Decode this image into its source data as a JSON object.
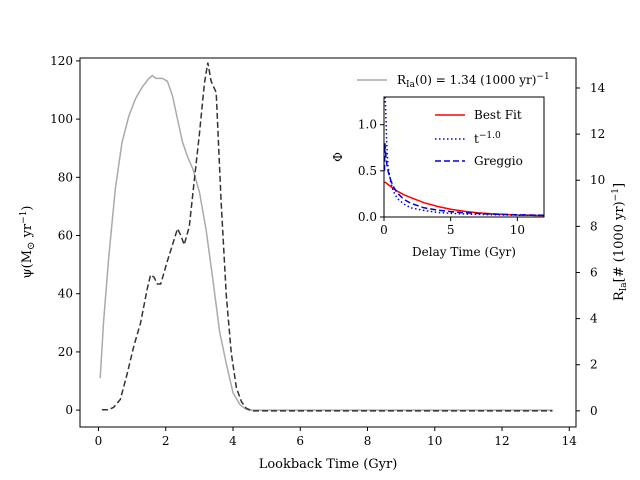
{
  "chart_data": [
    {
      "type": "line",
      "title": "",
      "xlabel": "Lookback Time (Gyr)",
      "ylabel": "ψ(M☉ yr⁻¹)",
      "y2label": "R_Ia [# (1000 yr)⁻¹]",
      "xlim": [
        -0.55,
        14.2
      ],
      "ylim": [
        -5.8,
        121
      ],
      "y2lim": [
        -0.7,
        15.3
      ],
      "xticks": [
        "0",
        "2",
        "4",
        "6",
        "8",
        "10",
        "12",
        "14"
      ],
      "yticks": [
        "0",
        "20",
        "40",
        "60",
        "80",
        "100",
        "120"
      ],
      "y2ticks": [
        "0",
        "2",
        "4",
        "6",
        "8",
        "10",
        "12",
        "14"
      ],
      "grid": false,
      "legend_position": "top-right",
      "series": [
        {
          "name": "R_Ia(0) = 1.34 (1000 yr)⁻¹",
          "axis": "left",
          "color": "#aaaaaa",
          "style": "solid",
          "x": [
            0.05,
            0.15,
            0.3,
            0.5,
            0.7,
            0.9,
            1.1,
            1.3,
            1.5,
            1.6,
            1.7,
            1.9,
            2.05,
            2.2,
            2.35,
            2.5,
            2.65,
            2.8,
            3.0,
            3.2,
            3.4,
            3.6,
            3.8,
            4.0,
            4.2,
            4.35,
            4.5,
            5.0,
            6.0,
            8.0,
            10.0,
            12.0,
            13.5
          ],
          "y": [
            11,
            30,
            52,
            76,
            92,
            101,
            107,
            111,
            114,
            115,
            114,
            114,
            113,
            108,
            100,
            92,
            87,
            83,
            75,
            62,
            45,
            27,
            16,
            6,
            2,
            0.6,
            0,
            0,
            0,
            0,
            0,
            0,
            0
          ]
        },
        {
          "name": "",
          "axis": "right",
          "color": "#333333",
          "style": "dashed",
          "x": [
            0.1,
            0.3,
            0.45,
            0.65,
            0.85,
            1.05,
            1.25,
            1.45,
            1.55,
            1.65,
            1.75,
            1.85,
            2.05,
            2.2,
            2.35,
            2.45,
            2.55,
            2.7,
            2.85,
            3.0,
            3.15,
            3.25,
            3.35,
            3.5,
            3.65,
            3.8,
            3.95,
            4.1,
            4.25,
            4.4,
            4.6,
            5.0,
            6.0,
            8.0,
            10.0,
            12.0,
            13.5
          ],
          "y": [
            0.05,
            0.05,
            0.15,
            0.5,
            1.6,
            2.8,
            3.8,
            5.3,
            5.9,
            5.8,
            5.5,
            5.5,
            6.5,
            7.2,
            7.9,
            7.6,
            7.2,
            8.0,
            10.0,
            12.0,
            14.2,
            15.1,
            14.3,
            13.8,
            9.0,
            5.0,
            2.5,
            1.0,
            0.4,
            0.1,
            0.0,
            0,
            0,
            0,
            0,
            0,
            0
          ]
        }
      ]
    },
    {
      "type": "line",
      "title": "",
      "xlabel": "Delay Time (Gyr)",
      "ylabel": "Φ",
      "xlim": [
        0,
        12
      ],
      "ylim": [
        0,
        1.3
      ],
      "xticks": [
        "0",
        "5",
        "10"
      ],
      "yticks": [
        "0.0",
        "0.5",
        "1.0"
      ],
      "grid": false,
      "legend_position": "top-right",
      "series": [
        {
          "name": "Best Fit",
          "color": "#ff0000",
          "style": "solid",
          "x": [
            0.05,
            0.5,
            1,
            1.5,
            2,
            3,
            4,
            5,
            6,
            7,
            8,
            9,
            10,
            11,
            12
          ],
          "y": [
            0.38,
            0.33,
            0.28,
            0.24,
            0.21,
            0.155,
            0.115,
            0.085,
            0.063,
            0.047,
            0.036,
            0.028,
            0.022,
            0.018,
            0.015
          ]
        },
        {
          "name": "t⁻¹·⁰",
          "color": "#0000dd",
          "style": "dotted",
          "x": [
            0.08,
            0.12,
            0.2,
            0.3,
            0.5,
            0.7,
            1,
            1.5,
            2,
            3,
            4,
            5,
            6,
            8,
            10,
            12
          ],
          "y": [
            1.3,
            1.2,
            0.8,
            0.55,
            0.38,
            0.28,
            0.2,
            0.14,
            0.1,
            0.07,
            0.05,
            0.04,
            0.033,
            0.025,
            0.02,
            0.017
          ]
        },
        {
          "name": "Greggio",
          "color": "#0000dd",
          "style": "dashed",
          "x": [
            0.04,
            0.07,
            0.1,
            0.15,
            0.2,
            0.3,
            0.5,
            0.7,
            1,
            1.5,
            2,
            3,
            4,
            5,
            6,
            8,
            10,
            12
          ],
          "y": [
            0.5,
            0.8,
            0.74,
            0.65,
            0.58,
            0.5,
            0.4,
            0.33,
            0.26,
            0.19,
            0.15,
            0.1,
            0.075,
            0.058,
            0.046,
            0.032,
            0.024,
            0.019
          ]
        }
      ]
    }
  ]
}
